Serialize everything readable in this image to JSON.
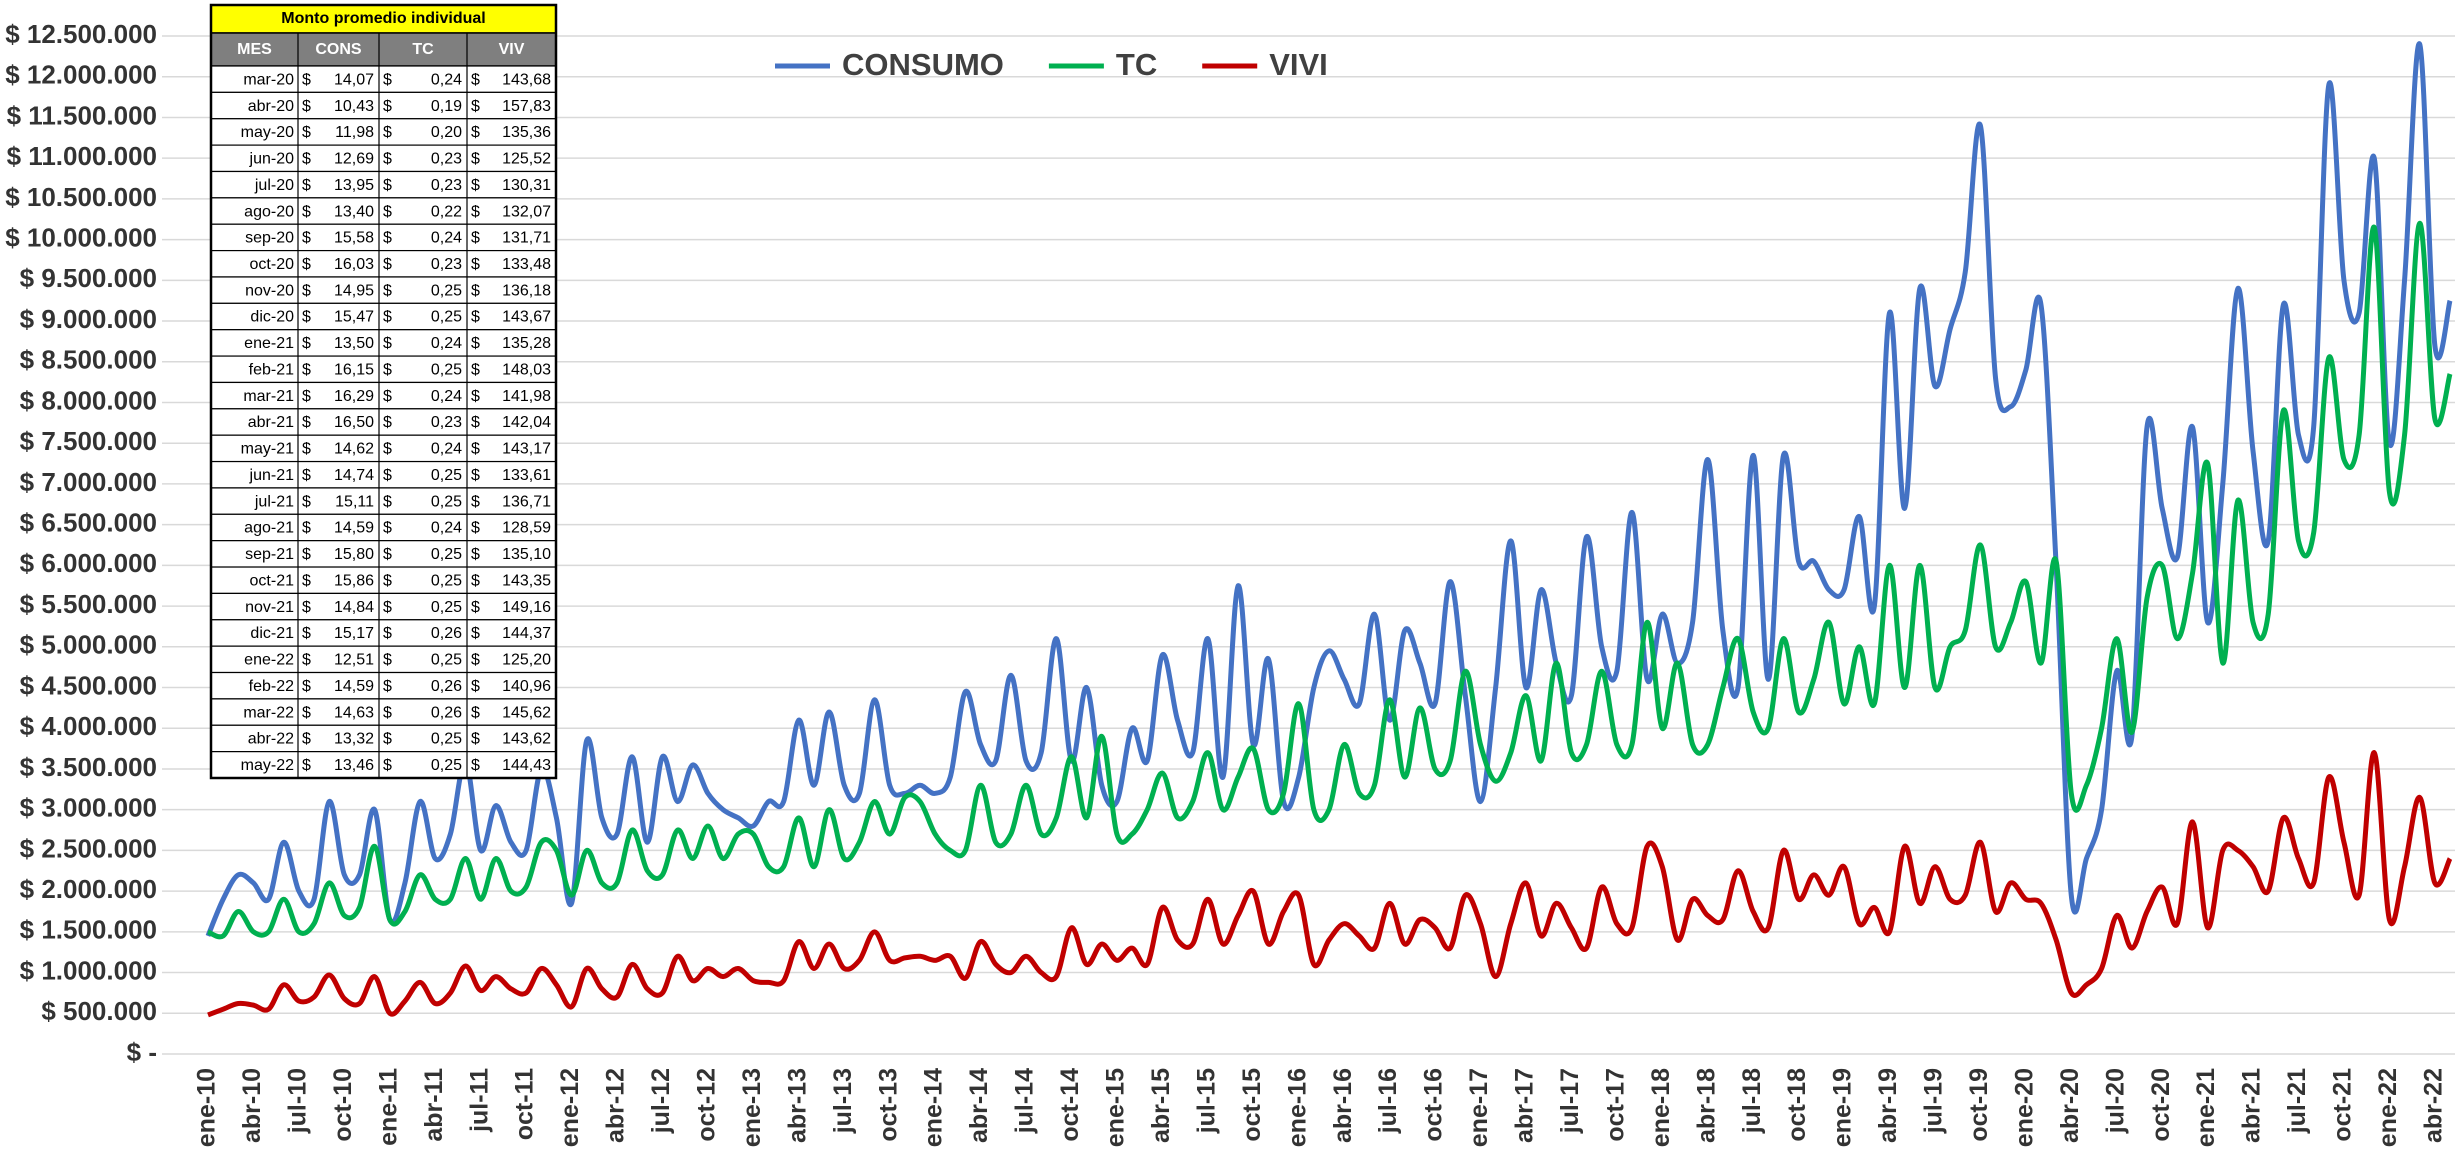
{
  "chart_data": {
    "type": "line",
    "yticks": [
      {
        "value": 0,
        "label": "$ -"
      },
      {
        "value": 500000,
        "label": "$ 500.000"
      },
      {
        "value": 1000000,
        "label": "$ 1.000.000"
      },
      {
        "value": 1500000,
        "label": "$ 1.500.000"
      },
      {
        "value": 2000000,
        "label": "$ 2.000.000"
      },
      {
        "value": 2500000,
        "label": "$ 2.500.000"
      },
      {
        "value": 3000000,
        "label": "$ 3.000.000"
      },
      {
        "value": 3500000,
        "label": "$ 3.500.000"
      },
      {
        "value": 4000000,
        "label": "$ 4.000.000"
      },
      {
        "value": 4500000,
        "label": "$ 4.500.000"
      },
      {
        "value": 5000000,
        "label": "$ 5.000.000"
      },
      {
        "value": 5500000,
        "label": "$ 5.500.000"
      },
      {
        "value": 6000000,
        "label": "$ 6.000.000"
      },
      {
        "value": 6500000,
        "label": "$ 6.500.000"
      },
      {
        "value": 7000000,
        "label": "$ 7.000.000"
      },
      {
        "value": 7500000,
        "label": "$ 7.500.000"
      },
      {
        "value": 8000000,
        "label": "$ 8.000.000"
      },
      {
        "value": 8500000,
        "label": "$ 8.500.000"
      },
      {
        "value": 9000000,
        "label": "$ 9.000.000"
      },
      {
        "value": 9500000,
        "label": "$ 9.500.000"
      },
      {
        "value": 10000000,
        "label": "$ 10.000.000"
      },
      {
        "value": 10500000,
        "label": "$ 10.500.000"
      },
      {
        "value": 11000000,
        "label": "$ 11.000.000"
      },
      {
        "value": 11500000,
        "label": "$ 11.500.000"
      },
      {
        "value": 12000000,
        "label": "$ 12.000.000"
      },
      {
        "value": 12500000,
        "label": "$ 12.500.000"
      }
    ],
    "ylim": [
      0,
      12500000
    ],
    "grid": true,
    "legend": "top",
    "categories": [
      "ene-10",
      null,
      null,
      "abr-10",
      null,
      null,
      "jul-10",
      null,
      null,
      "oct-10",
      null,
      null,
      "ene-11",
      null,
      null,
      "abr-11",
      null,
      null,
      "jul-11",
      null,
      null,
      "oct-11",
      null,
      null,
      "ene-12",
      null,
      null,
      "abr-12",
      null,
      null,
      "jul-12",
      null,
      null,
      "oct-12",
      null,
      null,
      "ene-13",
      null,
      null,
      "abr-13",
      null,
      null,
      "jul-13",
      null,
      null,
      "oct-13",
      null,
      null,
      "ene-14",
      null,
      null,
      "abr-14",
      null,
      null,
      "jul-14",
      null,
      null,
      "oct-14",
      null,
      null,
      "ene-15",
      null,
      null,
      "abr-15",
      null,
      null,
      "jul-15",
      null,
      null,
      "oct-15",
      null,
      null,
      "ene-16",
      null,
      null,
      "abr-16",
      null,
      null,
      "jul-16",
      null,
      null,
      "oct-16",
      null,
      null,
      "ene-17",
      null,
      null,
      "abr-17",
      null,
      null,
      "jul-17",
      null,
      null,
      "oct-17",
      null,
      null,
      "ene-18",
      null,
      null,
      "abr-18",
      null,
      null,
      "jul-18",
      null,
      null,
      "oct-18",
      null,
      null,
      "ene-19",
      null,
      null,
      "abr-19",
      null,
      null,
      "jul-19",
      null,
      null,
      "oct-19",
      null,
      null,
      "ene-20",
      null,
      null,
      "abr-20",
      null,
      null,
      "jul-20",
      null,
      null,
      "oct-20",
      null,
      null,
      "ene-21",
      null,
      null,
      "abr-21",
      null,
      null,
      "jul-21",
      null,
      null,
      "oct-21",
      null,
      null,
      "ene-22",
      null,
      null,
      "abr-22",
      null
    ],
    "series": [
      {
        "name": "CONSUMO",
        "color": "#4472c4",
        "values": [
          1450000,
          1900000,
          2200000,
          2100000,
          1900000,
          2600000,
          2000000,
          1900000,
          3100000,
          2200000,
          2200000,
          3000000,
          1650000,
          2100000,
          3100000,
          2400000,
          2700000,
          3600000,
          2500000,
          3050000,
          2600000,
          2500000,
          3500000,
          2900000,
          1850000,
          3850000,
          2900000,
          2700000,
          3650000,
          2600000,
          3650000,
          3100000,
          3550000,
          3200000,
          3000000,
          2900000,
          2800000,
          3100000,
          3100000,
          4100000,
          3300000,
          4200000,
          3300000,
          3200000,
          4350000,
          3300000,
          3200000,
          3300000,
          3200000,
          3400000,
          4450000,
          3800000,
          3600000,
          4650000,
          3600000,
          3700000,
          5100000,
          3600000,
          4500000,
          3300000,
          3100000,
          4000000,
          3600000,
          4900000,
          4100000,
          3700000,
          5100000,
          3400000,
          5750000,
          3800000,
          4850000,
          3100000,
          3400000,
          4500000,
          4950000,
          4600000,
          4300000,
          5400000,
          4100000,
          5200000,
          4800000,
          4300000,
          5800000,
          4400000,
          3100000,
          4500000,
          6300000,
          4500000,
          5700000,
          4800000,
          4400000,
          6350000,
          5000000,
          4700000,
          6650000,
          4600000,
          5400000,
          4800000,
          5300000,
          7300000,
          5200000,
          4500000,
          7350000,
          4600000,
          7350000,
          6050000,
          6050000,
          5700000,
          5700000,
          6600000,
          5500000,
          9100000,
          6700000,
          9400000,
          8200000,
          8900000,
          9600000,
          11400000,
          8300000,
          7950000,
          8400000,
          9200000,
          6000000,
          1950000,
          2400000,
          3000000,
          4700000,
          3900000,
          7700000,
          6700000,
          6100000,
          7700000,
          5300000,
          7000000,
          9400000,
          7400000,
          6300000,
          9200000,
          7600000,
          7700000,
          11900000,
          9500000,
          9100000,
          11000000,
          7500000,
          9500000,
          12400000,
          8700000,
          9250000
        ]
      },
      {
        "name": "TC",
        "color": "#00b050",
        "values": [
          1500000,
          1450000,
          1750000,
          1500000,
          1500000,
          1900000,
          1500000,
          1600000,
          2100000,
          1700000,
          1800000,
          2550000,
          1650000,
          1750000,
          2200000,
          1900000,
          1900000,
          2400000,
          1900000,
          2400000,
          2000000,
          2050000,
          2600000,
          2500000,
          1950000,
          2500000,
          2100000,
          2100000,
          2750000,
          2250000,
          2200000,
          2750000,
          2400000,
          2800000,
          2400000,
          2700000,
          2700000,
          2300000,
          2300000,
          2900000,
          2300000,
          3000000,
          2400000,
          2600000,
          3100000,
          2700000,
          3150000,
          3100000,
          2700000,
          2500000,
          2500000,
          3300000,
          2600000,
          2700000,
          3300000,
          2700000,
          2900000,
          3650000,
          2900000,
          3900000,
          2700000,
          2700000,
          3000000,
          3450000,
          2900000,
          3100000,
          3700000,
          3000000,
          3400000,
          3750000,
          3000000,
          3200000,
          4300000,
          3000000,
          3000000,
          3800000,
          3200000,
          3300000,
          4350000,
          3400000,
          4250000,
          3500000,
          3600000,
          4700000,
          3800000,
          3350000,
          3700000,
          4400000,
          3600000,
          4800000,
          3700000,
          3800000,
          4700000,
          3800000,
          3800000,
          5300000,
          4000000,
          4800000,
          3800000,
          3800000,
          4500000,
          5100000,
          4200000,
          4000000,
          5100000,
          4200000,
          4600000,
          5300000,
          4300000,
          5000000,
          4300000,
          6000000,
          4500000,
          6000000,
          4500000,
          5000000,
          5200000,
          6250000,
          5000000,
          5300000,
          5800000,
          4800000,
          6050000,
          3200000,
          3300000,
          4000000,
          5100000,
          3950000,
          5600000,
          6000000,
          5100000,
          5900000,
          7250000,
          4800000,
          6800000,
          5300000,
          5400000,
          7900000,
          6300000,
          6400000,
          8550000,
          7300000,
          7600000,
          10150000,
          6900000,
          7600000,
          10200000,
          7800000,
          8350000
        ]
      },
      {
        "name": "VIVI",
        "color": "#c00000",
        "values": [
          480000,
          550000,
          620000,
          600000,
          550000,
          850000,
          650000,
          700000,
          970000,
          680000,
          620000,
          950000,
          500000,
          650000,
          880000,
          620000,
          750000,
          1080000,
          780000,
          950000,
          800000,
          750000,
          1050000,
          850000,
          580000,
          1050000,
          800000,
          700000,
          1100000,
          800000,
          750000,
          1200000,
          900000,
          1050000,
          950000,
          1050000,
          900000,
          880000,
          900000,
          1380000,
          1050000,
          1350000,
          1050000,
          1150000,
          1500000,
          1150000,
          1180000,
          1200000,
          1150000,
          1200000,
          930000,
          1380000,
          1100000,
          1000000,
          1200000,
          1000000,
          950000,
          1550000,
          1100000,
          1350000,
          1150000,
          1300000,
          1100000,
          1800000,
          1400000,
          1350000,
          1900000,
          1350000,
          1700000,
          2000000,
          1350000,
          1750000,
          1950000,
          1100000,
          1400000,
          1600000,
          1450000,
          1300000,
          1850000,
          1350000,
          1650000,
          1550000,
          1300000,
          1950000,
          1600000,
          950000,
          1600000,
          2100000,
          1450000,
          1850000,
          1550000,
          1300000,
          2050000,
          1600000,
          1550000,
          2550000,
          2300000,
          1400000,
          1900000,
          1700000,
          1650000,
          2250000,
          1750000,
          1550000,
          2500000,
          1900000,
          2200000,
          1950000,
          2300000,
          1600000,
          1800000,
          1500000,
          2550000,
          1850000,
          2300000,
          1900000,
          1950000,
          2600000,
          1750000,
          2100000,
          1900000,
          1850000,
          1400000,
          750000,
          850000,
          1050000,
          1700000,
          1300000,
          1750000,
          2050000,
          1600000,
          2850000,
          1550000,
          2500000,
          2500000,
          2300000,
          2000000,
          2900000,
          2400000,
          2100000,
          3400000,
          2600000,
          1950000,
          3700000,
          1650000,
          2300000,
          3150000,
          2100000,
          2400000
        ]
      }
    ]
  },
  "table": {
    "title": "Monto promedio individual",
    "currency": "$",
    "columns": [
      "MES",
      "CONS",
      "TC",
      "VIV"
    ],
    "rows": [
      [
        "mar-20",
        "14,07",
        "0,24",
        "143,68"
      ],
      [
        "abr-20",
        "10,43",
        "0,19",
        "157,83"
      ],
      [
        "may-20",
        "11,98",
        "0,20",
        "135,36"
      ],
      [
        "jun-20",
        "12,69",
        "0,23",
        "125,52"
      ],
      [
        "jul-20",
        "13,95",
        "0,23",
        "130,31"
      ],
      [
        "ago-20",
        "13,40",
        "0,22",
        "132,07"
      ],
      [
        "sep-20",
        "15,58",
        "0,24",
        "131,71"
      ],
      [
        "oct-20",
        "16,03",
        "0,23",
        "133,48"
      ],
      [
        "nov-20",
        "14,95",
        "0,25",
        "136,18"
      ],
      [
        "dic-20",
        "15,47",
        "0,25",
        "143,67"
      ],
      [
        "ene-21",
        "13,50",
        "0,24",
        "135,28"
      ],
      [
        "feb-21",
        "16,15",
        "0,25",
        "148,03"
      ],
      [
        "mar-21",
        "16,29",
        "0,24",
        "141,98"
      ],
      [
        "abr-21",
        "16,50",
        "0,23",
        "142,04"
      ],
      [
        "may-21",
        "14,62",
        "0,24",
        "143,17"
      ],
      [
        "jun-21",
        "14,74",
        "0,25",
        "133,61"
      ],
      [
        "jul-21",
        "15,11",
        "0,25",
        "136,71"
      ],
      [
        "ago-21",
        "14,59",
        "0,24",
        "128,59"
      ],
      [
        "sep-21",
        "15,80",
        "0,25",
        "135,10"
      ],
      [
        "oct-21",
        "15,86",
        "0,25",
        "143,35"
      ],
      [
        "nov-21",
        "14,84",
        "0,25",
        "149,16"
      ],
      [
        "dic-21",
        "15,17",
        "0,26",
        "144,37"
      ],
      [
        "ene-22",
        "12,51",
        "0,25",
        "125,20"
      ],
      [
        "feb-22",
        "14,59",
        "0,26",
        "140,96"
      ],
      [
        "mar-22",
        "14,63",
        "0,26",
        "145,62"
      ],
      [
        "abr-22",
        "13,32",
        "0,25",
        "143,62"
      ],
      [
        "may-22",
        "13,46",
        "0,25",
        "144,43"
      ]
    ]
  }
}
